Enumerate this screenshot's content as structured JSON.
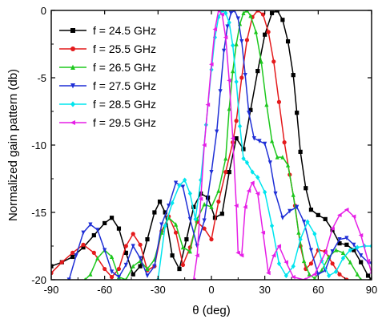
{
  "chart_data": {
    "type": "line",
    "title": "",
    "xlabel": "θ (deg)",
    "ylabel": "Normalized gain pattern (db)",
    "xlim": [
      -90,
      90
    ],
    "ylim": [
      -20,
      0
    ],
    "xticks": [
      -90,
      -60,
      -30,
      0,
      30,
      60,
      90
    ],
    "yticks": [
      0,
      -5,
      -10,
      -15,
      -20
    ],
    "grid": false,
    "legend_position": "top-left",
    "series": [
      {
        "name": "f = 24.5 GHz",
        "color": "#000000",
        "marker": "square",
        "points": [
          [
            -90,
            -19.0
          ],
          [
            -84,
            -18.7
          ],
          [
            -78,
            -18.3
          ],
          [
            -72,
            -17.6
          ],
          [
            -66,
            -16.7
          ],
          [
            -60,
            -15.8
          ],
          [
            -56,
            -15.4
          ],
          [
            -52,
            -16.2
          ],
          [
            -48,
            -18.0
          ],
          [
            -44,
            -19.6
          ],
          [
            -40,
            -19.0
          ],
          [
            -36,
            -17.0
          ],
          [
            -32,
            -15.0
          ],
          [
            -29,
            -14.2
          ],
          [
            -26,
            -15.0
          ],
          [
            -22,
            -18.2
          ],
          [
            -18,
            -19.2
          ],
          [
            -14,
            -17.0
          ],
          [
            -10,
            -14.6
          ],
          [
            -6,
            -13.6
          ],
          [
            -2,
            -13.9
          ],
          [
            2,
            -15.4
          ],
          [
            6,
            -15.1
          ],
          [
            10,
            -12.0
          ],
          [
            14,
            -9.5
          ],
          [
            18,
            -10.3
          ],
          [
            22,
            -7.4
          ],
          [
            26,
            -4.5
          ],
          [
            30,
            -1.8
          ],
          [
            34,
            -0.2
          ],
          [
            37,
            0
          ],
          [
            40,
            -0.7
          ],
          [
            43,
            -2.3
          ],
          [
            46,
            -4.8
          ],
          [
            48,
            -7.6
          ],
          [
            50,
            -10.5
          ],
          [
            53,
            -13.2
          ],
          [
            56,
            -14.8
          ],
          [
            60,
            -15.2
          ],
          [
            64,
            -15.5
          ],
          [
            68,
            -16.3
          ],
          [
            72,
            -17.3
          ],
          [
            76,
            -17.4
          ],
          [
            80,
            -17.8
          ],
          [
            84,
            -18.7
          ],
          [
            88,
            -19.7
          ],
          [
            90,
            -20
          ]
        ]
      },
      {
        "name": "f = 25.5 GHz",
        "color": "#e41a1c",
        "marker": "circle",
        "points": [
          [
            -90,
            -19.5
          ],
          [
            -84,
            -18.7
          ],
          [
            -78,
            -18.0
          ],
          [
            -72,
            -17.4
          ],
          [
            -66,
            -18.0
          ],
          [
            -60,
            -19.2
          ],
          [
            -56,
            -19.8
          ],
          [
            -52,
            -19.2
          ],
          [
            -48,
            -17.5
          ],
          [
            -44,
            -16.6
          ],
          [
            -40,
            -17.4
          ],
          [
            -36,
            -19.3
          ],
          [
            -32,
            -19.0
          ],
          [
            -28,
            -16.4
          ],
          [
            -24,
            -15.3
          ],
          [
            -20,
            -16.5
          ],
          [
            -16,
            -18.9
          ],
          [
            -12,
            -17.6
          ],
          [
            -8,
            -15.7
          ],
          [
            -4,
            -16.2
          ],
          [
            0,
            -17.0
          ],
          [
            4,
            -14.2
          ],
          [
            8,
            -12.0
          ],
          [
            12,
            -9.8
          ],
          [
            14,
            -8.2
          ],
          [
            17,
            -5.0
          ],
          [
            20,
            -2.2
          ],
          [
            23,
            -0.5
          ],
          [
            26,
            0
          ],
          [
            29,
            -0.3
          ],
          [
            32,
            -1.6
          ],
          [
            35,
            -3.8
          ],
          [
            38,
            -6.8
          ],
          [
            41,
            -9.8
          ],
          [
            44,
            -12.2
          ],
          [
            47,
            -14.5
          ],
          [
            50,
            -17.5
          ],
          [
            53,
            -19.2
          ],
          [
            56,
            -18.8
          ],
          [
            60,
            -17.8
          ],
          [
            64,
            -17.9
          ],
          [
            68,
            -18.8
          ],
          [
            72,
            -19.6
          ],
          [
            76,
            -20.0
          ]
        ]
      },
      {
        "name": "f = 26.5 GHz",
        "color": "#1ec81e",
        "marker": "triangle-up",
        "points": [
          [
            -71,
            -20.0
          ],
          [
            -68,
            -19.6
          ],
          [
            -64,
            -18.4
          ],
          [
            -60,
            -17.8
          ],
          [
            -56,
            -18.3
          ],
          [
            -52,
            -19.8
          ],
          [
            -48,
            -20.0
          ],
          [
            -44,
            -19.0
          ],
          [
            -40,
            -18.6
          ],
          [
            -36,
            -19.2
          ],
          [
            -32,
            -18.5
          ],
          [
            -28,
            -16.5
          ],
          [
            -24,
            -15.4
          ],
          [
            -20,
            -15.9
          ],
          [
            -16,
            -17.6
          ],
          [
            -12,
            -17.9
          ],
          [
            -8,
            -15.5
          ],
          [
            -4,
            -14.4
          ],
          [
            0,
            -14.6
          ],
          [
            4,
            -13.4
          ],
          [
            8,
            -11.0
          ],
          [
            10,
            -7.3
          ],
          [
            12,
            -4.5
          ],
          [
            14,
            -2.5
          ],
          [
            16,
            -1.0
          ],
          [
            18,
            -0.2
          ],
          [
            20,
            0
          ],
          [
            22,
            -0.4
          ],
          [
            25,
            -1.6
          ],
          [
            28,
            -3.8
          ],
          [
            31,
            -7.0
          ],
          [
            34,
            -9.7
          ],
          [
            37,
            -10.9
          ],
          [
            40,
            -10.9
          ],
          [
            43,
            -11.5
          ],
          [
            46,
            -13.7
          ],
          [
            49,
            -16.5
          ],
          [
            52,
            -18.6
          ],
          [
            55,
            -19.6
          ],
          [
            58,
            -19.9
          ],
          [
            62,
            -19.3
          ],
          [
            66,
            -18.3
          ],
          [
            70,
            -17.8
          ],
          [
            74,
            -18.0
          ],
          [
            78,
            -18.7
          ],
          [
            82,
            -19.6
          ],
          [
            84,
            -20.0
          ]
        ]
      },
      {
        "name": "f = 27.5 GHz",
        "color": "#1f2fd6",
        "marker": "triangle-down",
        "points": [
          [
            -80,
            -20.0
          ],
          [
            -76,
            -18.2
          ],
          [
            -72,
            -16.5
          ],
          [
            -68,
            -15.9
          ],
          [
            -64,
            -16.3
          ],
          [
            -60,
            -17.8
          ],
          [
            -56,
            -19.4
          ],
          [
            -52,
            -19.8
          ],
          [
            -48,
            -18.9
          ],
          [
            -44,
            -17.5
          ],
          [
            -40,
            -18.4
          ],
          [
            -36,
            -19.7
          ],
          [
            -32,
            -19.0
          ],
          [
            -28,
            -15.9
          ],
          [
            -24,
            -14.5
          ],
          [
            -20,
            -12.8
          ],
          [
            -16,
            -13.1
          ],
          [
            -12,
            -15.5
          ],
          [
            -8,
            -17.5
          ],
          [
            -4,
            -15.6
          ],
          [
            0,
            -12.0
          ],
          [
            3,
            -9.0
          ],
          [
            5,
            -6.0
          ],
          [
            7,
            -3.0
          ],
          [
            9,
            -1.2
          ],
          [
            11,
            -0.2
          ],
          [
            13,
            0
          ],
          [
            15,
            -0.6
          ],
          [
            17,
            -2.3
          ],
          [
            19,
            -4.8
          ],
          [
            21,
            -7.6
          ],
          [
            24,
            -9.5
          ],
          [
            27,
            -9.7
          ],
          [
            30,
            -9.9
          ],
          [
            33,
            -11.3
          ],
          [
            36,
            -13.6
          ],
          [
            40,
            -15.4
          ],
          [
            44,
            -14.9
          ],
          [
            48,
            -14.6
          ],
          [
            52,
            -15.7
          ],
          [
            56,
            -17.8
          ],
          [
            60,
            -19.6
          ],
          [
            64,
            -19.3
          ],
          [
            68,
            -17.9
          ],
          [
            72,
            -17.0
          ],
          [
            76,
            -16.9
          ],
          [
            80,
            -17.4
          ],
          [
            84,
            -18.2
          ],
          [
            88,
            -18.7
          ],
          [
            90,
            -18.8
          ]
        ]
      },
      {
        "name": "f = 28.5 GHz",
        "color": "#00e5ee",
        "marker": "diamond",
        "points": [
          [
            -30,
            -20.0
          ],
          [
            -26,
            -16.0
          ],
          [
            -22,
            -14.3
          ],
          [
            -18,
            -13.0
          ],
          [
            -15,
            -12.6
          ],
          [
            -12,
            -13.6
          ],
          [
            -9,
            -15.5
          ],
          [
            -6,
            -12.6
          ],
          [
            -3,
            -8.5
          ],
          [
            0,
            -4.4
          ],
          [
            2,
            -2.0
          ],
          [
            4,
            -0.5
          ],
          [
            6,
            0
          ],
          [
            8,
            -0.2
          ],
          [
            10,
            -0.9
          ],
          [
            12,
            -2.6
          ],
          [
            14,
            -5.3
          ],
          [
            16,
            -8.6
          ],
          [
            18,
            -11.0
          ],
          [
            20,
            -11.3
          ],
          [
            23,
            -12.0
          ],
          [
            26,
            -12.4
          ],
          [
            30,
            -13.5
          ],
          [
            34,
            -16.0
          ],
          [
            38,
            -18.8
          ],
          [
            42,
            -19.7
          ],
          [
            46,
            -19.0
          ],
          [
            50,
            -17.0
          ],
          [
            54,
            -15.7
          ],
          [
            58,
            -16.6
          ],
          [
            62,
            -18.6
          ],
          [
            66,
            -19.7
          ],
          [
            70,
            -19.4
          ],
          [
            74,
            -18.4
          ],
          [
            78,
            -17.8
          ],
          [
            82,
            -17.6
          ],
          [
            86,
            -17.5
          ],
          [
            90,
            -17.5
          ]
        ]
      },
      {
        "name": "f = 29.5 GHz",
        "color": "#e61ee6",
        "marker": "triangle-left",
        "points": [
          [
            -10,
            -20.0
          ],
          [
            -8,
            -18.2
          ],
          [
            -6,
            -14.0
          ],
          [
            -4,
            -10.0
          ],
          [
            -2,
            -7.0
          ],
          [
            0,
            -4.0
          ],
          [
            2,
            -1.4
          ],
          [
            4,
            0
          ],
          [
            6,
            -0.3
          ],
          [
            8,
            -2.0
          ],
          [
            10,
            -5.2
          ],
          [
            12,
            -9.5
          ],
          [
            14,
            -14.5
          ],
          [
            15,
            -18.0
          ],
          [
            17,
            -18.2
          ],
          [
            19,
            -14.6
          ],
          [
            21,
            -13.4
          ],
          [
            23,
            -12.8
          ],
          [
            26,
            -13.6
          ],
          [
            29,
            -16.5
          ],
          [
            32,
            -19.5
          ],
          [
            35,
            -18.2
          ],
          [
            38,
            -17.5
          ],
          [
            42,
            -18.7
          ],
          [
            46,
            -19.8
          ],
          [
            52,
            -20.0
          ],
          [
            58,
            -19.6
          ],
          [
            64,
            -18.0
          ],
          [
            68,
            -16.2
          ],
          [
            72,
            -15.2
          ],
          [
            76,
            -14.8
          ],
          [
            80,
            -15.3
          ],
          [
            84,
            -16.7
          ],
          [
            88,
            -18.6
          ],
          [
            90,
            -19.5
          ]
        ]
      }
    ]
  }
}
